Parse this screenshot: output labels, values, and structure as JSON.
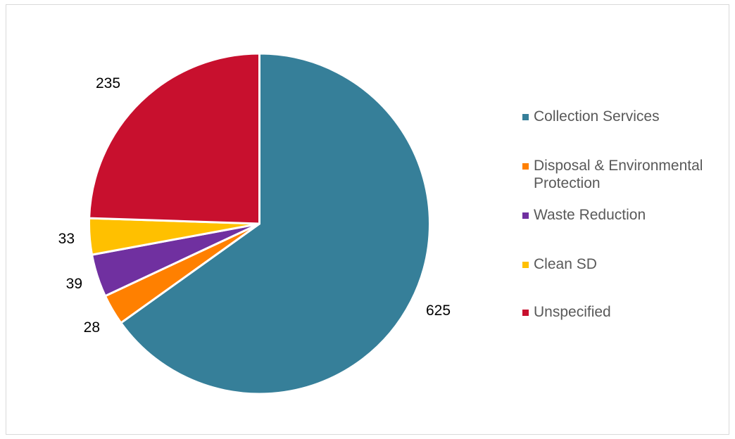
{
  "chart_data": {
    "type": "pie",
    "title": "",
    "categories": [
      "Collection Services",
      "Disposal & Environmental Protection",
      "Waste Reduction",
      "Clean SD",
      "Unspecified"
    ],
    "values": [
      625,
      28,
      39,
      33,
      235
    ],
    "colors": [
      "#367f99",
      "#ff8000",
      "#7030a0",
      "#ffc000",
      "#c8102e"
    ],
    "legend_position": "right"
  }
}
